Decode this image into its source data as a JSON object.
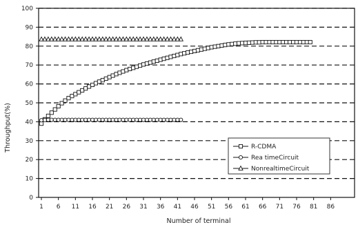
{
  "chart_data": {
    "type": "line",
    "xlabel": "Number of terminal",
    "ylabel": "Throughput(%)",
    "ylim": [
      0,
      100
    ],
    "xlim": [
      1,
      91
    ],
    "x_tick_labels": [
      "1",
      "6",
      "11",
      "16",
      "21",
      "26",
      "31",
      "36",
      "41",
      "46",
      "51",
      "56",
      "61",
      "66",
      "71",
      "76",
      "81",
      "86"
    ],
    "y_tick_labels": [
      "0",
      "10",
      "20",
      "30",
      "40",
      "50",
      "60",
      "70",
      "80",
      "90",
      "100"
    ],
    "grid": "horizontal-dashed",
    "legend_position": "lower-right",
    "series": [
      {
        "name": "R-CDMA",
        "marker": "square",
        "x": [
          1,
          2,
          3,
          4,
          5,
          6,
          7,
          8,
          9,
          10,
          11,
          12,
          13,
          14,
          15,
          16,
          17,
          18,
          19,
          20,
          21,
          22,
          23,
          24,
          25,
          26,
          27,
          28,
          29,
          30,
          31,
          32,
          33,
          34,
          35,
          36,
          37,
          38,
          39,
          40,
          41,
          42,
          43,
          44,
          45,
          46,
          47,
          48,
          49,
          50,
          51,
          52,
          53,
          54,
          55,
          56,
          57,
          58,
          59,
          60,
          61,
          62,
          63,
          64,
          65,
          66,
          67,
          68,
          69,
          70,
          71,
          72,
          73,
          74,
          75,
          76,
          77,
          78,
          79,
          80
        ],
        "y": [
          39.0,
          41.3,
          43.1,
          44.8,
          46.5,
          48.2,
          49.8,
          51.2,
          52.5,
          53.6,
          54.6,
          55.6,
          56.6,
          57.6,
          58.6,
          59.5,
          60.4,
          61.2,
          62.0,
          62.8,
          63.6,
          64.4,
          65.2,
          65.9,
          66.6,
          67.3,
          67.9,
          68.5,
          69.1,
          69.7,
          70.3,
          70.8,
          71.3,
          71.8,
          72.3,
          72.8,
          73.3,
          73.8,
          74.3,
          74.8,
          75.3,
          75.8,
          76.2,
          76.6,
          77.0,
          77.4,
          77.8,
          78.2,
          78.6,
          79.0,
          79.4,
          79.7,
          80.0,
          80.3,
          80.6,
          80.9,
          81.1,
          81.3,
          81.5,
          81.6,
          81.7,
          81.8,
          81.9,
          82.0,
          82.0,
          82.1,
          82.1,
          82.1,
          82.1,
          82.1,
          82.1,
          82.1,
          82.1,
          82.1,
          82.1,
          82.1,
          82.1,
          82.1,
          82.1,
          82.1
        ]
      },
      {
        "name": "Rea timeCircuit",
        "marker": "circle",
        "x": [
          1,
          2,
          3,
          4,
          5,
          6,
          7,
          8,
          9,
          10,
          11,
          12,
          13,
          14,
          15,
          16,
          17,
          18,
          19,
          20,
          21,
          22,
          23,
          24,
          25,
          26,
          27,
          28,
          29,
          30,
          31,
          32,
          33,
          34,
          35,
          36,
          37,
          38,
          39,
          40,
          41,
          42
        ],
        "y": [
          40.8,
          40.9,
          41.0,
          41.0,
          41.0,
          41.0,
          41.0,
          41.0,
          41.0,
          41.0,
          41.0,
          41.0,
          41.0,
          41.0,
          41.0,
          41.0,
          41.0,
          41.0,
          41.0,
          41.0,
          41.0,
          41.0,
          41.0,
          41.0,
          41.0,
          41.0,
          41.0,
          41.0,
          41.0,
          41.0,
          41.0,
          41.0,
          41.0,
          41.0,
          41.0,
          41.0,
          41.0,
          41.0,
          41.0,
          41.0,
          41.0,
          41.0
        ]
      },
      {
        "name": "NonrealtimeCircuit",
        "marker": "triangle",
        "x": [
          1,
          2,
          3,
          4,
          5,
          6,
          7,
          8,
          9,
          10,
          11,
          12,
          13,
          14,
          15,
          16,
          17,
          18,
          19,
          20,
          21,
          22,
          23,
          24,
          25,
          26,
          27,
          28,
          29,
          30,
          31,
          32,
          33,
          34,
          35,
          36,
          37,
          38,
          39,
          40,
          41,
          42
        ],
        "y": [
          83.6,
          83.6,
          83.6,
          83.6,
          83.6,
          83.6,
          83.6,
          83.6,
          83.6,
          83.6,
          83.6,
          83.6,
          83.6,
          83.6,
          83.6,
          83.6,
          83.6,
          83.6,
          83.6,
          83.6,
          83.6,
          83.6,
          83.6,
          83.6,
          83.6,
          83.6,
          83.6,
          83.6,
          83.6,
          83.6,
          83.6,
          83.6,
          83.6,
          83.6,
          83.6,
          83.6,
          83.6,
          83.6,
          83.6,
          83.6,
          83.6,
          83.6
        ]
      }
    ]
  }
}
